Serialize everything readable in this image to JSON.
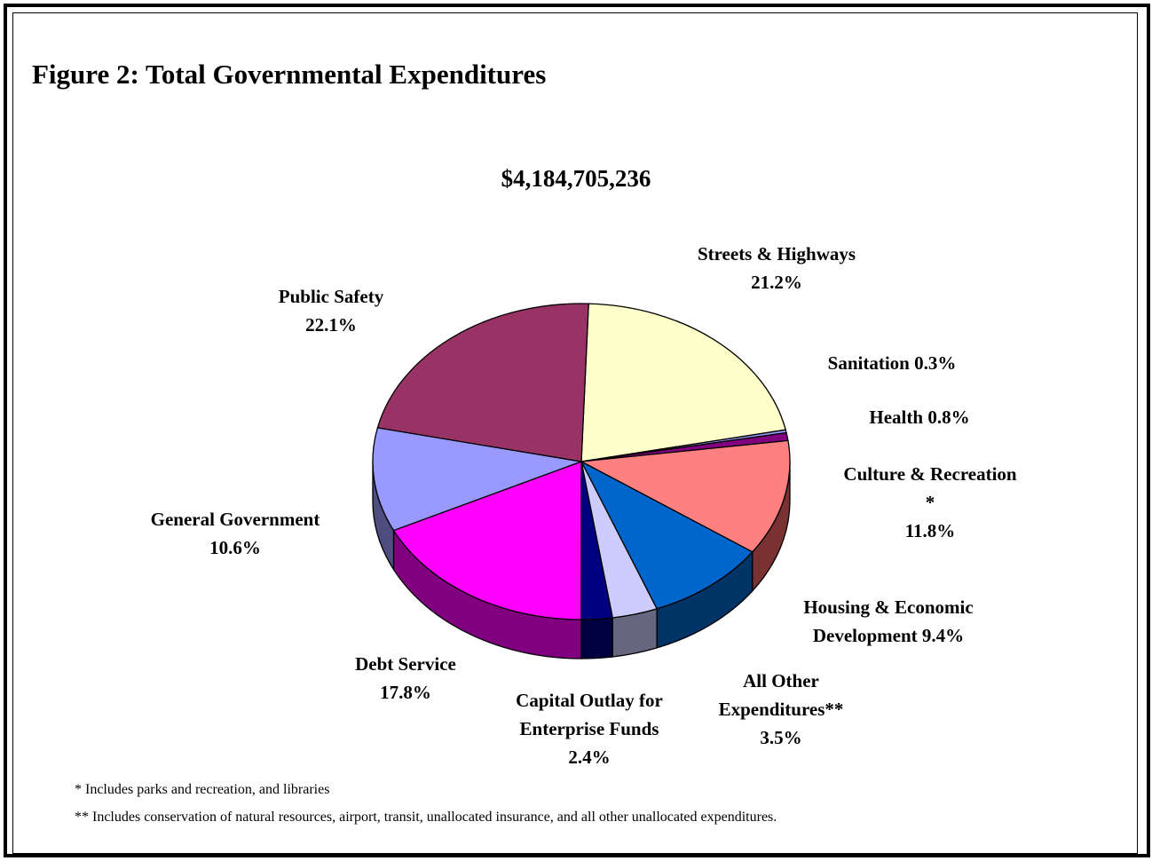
{
  "title": "Figure 2: Total Governmental Expenditures",
  "total": "$4,184,705,236",
  "footnotes": [
    "* Includes parks and recreation, and libraries",
    "** Includes conservation of natural resources, airport, transit, unallocated insurance, and all other unallocated expenditures."
  ],
  "chart_data": {
    "type": "pie",
    "title": "Figure 2: Total Governmental Expenditures",
    "subtitle": "$4,184,705,236",
    "style": "3d",
    "slices": [
      {
        "label": "Streets & Highways",
        "value": 21.2,
        "color": "#FFFFCC",
        "side": "#CCCCA3",
        "label_lines": [
          "Streets & Highways",
          "21.2%"
        ]
      },
      {
        "label": "Sanitation",
        "value": 0.3,
        "color": "#9999FF",
        "side": "#6B6BB3",
        "label_lines": [
          "Sanitation 0.3%"
        ]
      },
      {
        "label": "Health",
        "value": 0.8,
        "color": "#800080",
        "side": "#5A005A",
        "label_lines": [
          "Health 0.8%"
        ]
      },
      {
        "label": "Culture & Recreation *",
        "value": 11.8,
        "color": "#FF8080",
        "side": "#7A3131",
        "label_lines": [
          "Culture & Recreation",
          "*",
          "11.8%"
        ]
      },
      {
        "label": "Housing & Economic Development",
        "value": 9.4,
        "color": "#0066CC",
        "side": "#003366",
        "label_lines": [
          "Housing & Economic",
          "Development 9.4%"
        ]
      },
      {
        "label": "All Other Expenditures**",
        "value": 3.5,
        "color": "#CCCCFF",
        "side": "#66667F",
        "label_lines": [
          "All Other",
          "Expenditures**",
          "3.5%"
        ]
      },
      {
        "label": "Capital Outlay for Enterprise Funds",
        "value": 2.4,
        "color": "#000080",
        "side": "#000040",
        "label_lines": [
          "Capital Outlay for",
          "Enterprise Funds",
          "2.4%"
        ]
      },
      {
        "label": "Debt Service",
        "value": 17.8,
        "color": "#FF00FF",
        "side": "#800080",
        "label_lines": [
          "Debt Service",
          "17.8%"
        ]
      },
      {
        "label": "General Government",
        "value": 10.6,
        "color": "#9999FF",
        "side": "#4D4D80",
        "label_lines": [
          "General Government",
          "10.6%"
        ]
      },
      {
        "label": "Public Safety",
        "value": 22.1,
        "color": "#993366",
        "side": "#4D1A33",
        "label_lines": [
          "Public Safety",
          "22.1%"
        ]
      }
    ]
  }
}
